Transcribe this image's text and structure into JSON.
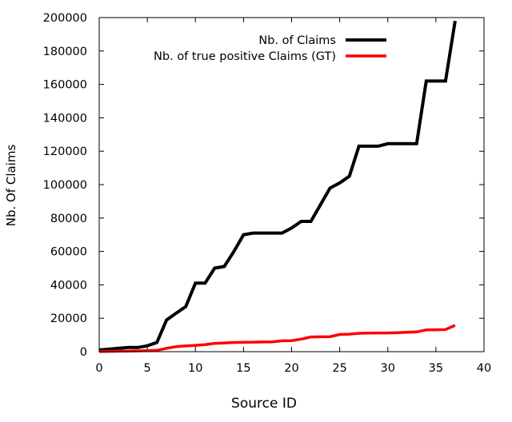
{
  "chart_data": {
    "type": "line",
    "xlabel": "Source ID",
    "ylabel": "Nb. Of Claims",
    "xlim": [
      0,
      40
    ],
    "ylim": [
      0,
      200000
    ],
    "x_ticks": [
      0,
      5,
      10,
      15,
      20,
      25,
      30,
      35,
      40
    ],
    "y_ticks": [
      0,
      20000,
      40000,
      60000,
      80000,
      100000,
      120000,
      140000,
      160000,
      180000,
      200000
    ],
    "x_tick_labels": [
      "0",
      "5",
      "10",
      "15",
      "20",
      "25",
      "30",
      "35",
      "40"
    ],
    "y_tick_labels": [
      "0",
      "20000",
      "40000",
      "60000",
      "80000",
      "100000",
      "120000",
      "140000",
      "160000",
      "180000",
      "200000"
    ],
    "grid": false,
    "legend_position": "top-right",
    "series": [
      {
        "name": "Nb. of Claims",
        "color": "#000000",
        "x": [
          0,
          1,
          2,
          3,
          4,
          5,
          6,
          7,
          8,
          9,
          10,
          11,
          12,
          13,
          14,
          15,
          16,
          17,
          18,
          19,
          20,
          21,
          22,
          23,
          24,
          25,
          26,
          27,
          28,
          29,
          30,
          31,
          32,
          33,
          34,
          35,
          36,
          37
        ],
        "y": [
          1000,
          1500,
          2000,
          2500,
          2500,
          3500,
          5500,
          19000,
          23000,
          27000,
          41000,
          41000,
          50000,
          51000,
          60000,
          70000,
          71000,
          71000,
          71000,
          71000,
          74000,
          78000,
          78000,
          88000,
          98000,
          101000,
          105000,
          123000,
          123000,
          123000,
          124500,
          124500,
          124500,
          124500,
          162000,
          162000,
          162000,
          198000
        ]
      },
      {
        "name": "Nb. of true positive Claims (GT)",
        "color": "#ff0000",
        "x": [
          0,
          1,
          2,
          3,
          4,
          5,
          6,
          7,
          8,
          9,
          10,
          11,
          12,
          13,
          14,
          15,
          16,
          17,
          18,
          19,
          20,
          21,
          22,
          23,
          24,
          25,
          26,
          27,
          28,
          29,
          30,
          31,
          32,
          33,
          34,
          35,
          36,
          37
        ],
        "y": [
          100,
          200,
          300,
          400,
          500,
          600,
          800,
          2000,
          3000,
          3500,
          3800,
          4200,
          5000,
          5200,
          5500,
          5600,
          5700,
          5800,
          5900,
          6500,
          6600,
          7500,
          8800,
          8900,
          9000,
          10300,
          10500,
          11000,
          11100,
          11200,
          11200,
          11400,
          11600,
          11800,
          13000,
          13100,
          13200,
          15800
        ]
      }
    ]
  }
}
